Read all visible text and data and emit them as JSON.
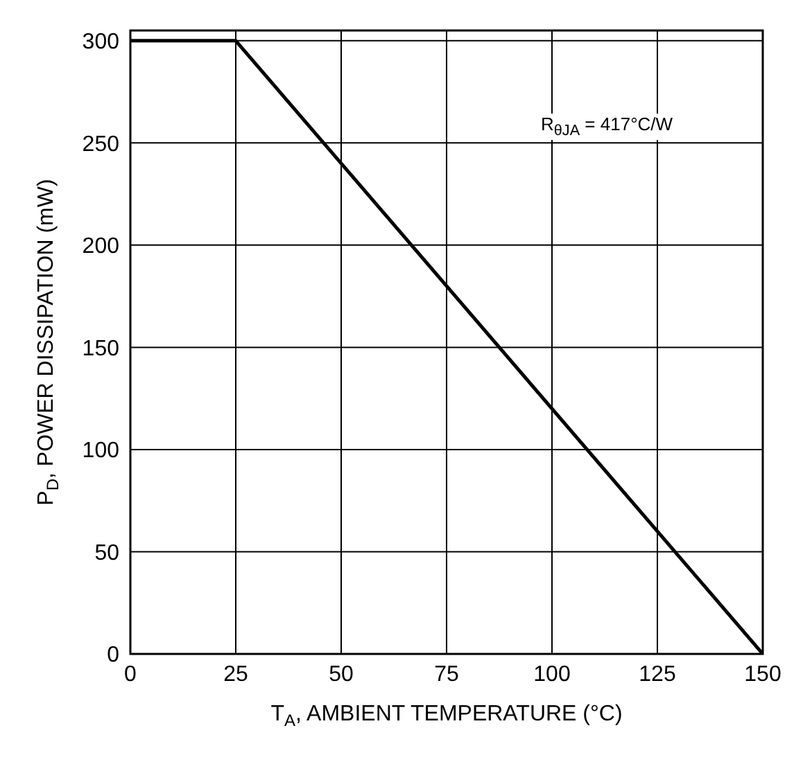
{
  "chart_data": {
    "type": "line",
    "xlabel": "T$_{A}$, AMBIENT TEMPERATURE (°C)",
    "ylabel": "P$_{D}$, POWER DISSIPATION (mW)",
    "x": [
      0,
      25,
      150
    ],
    "series": [
      {
        "color": "#000000",
        "values": [
          300,
          300,
          0
        ]
      }
    ],
    "xlim": [
      0,
      150
    ],
    "xticks": [
      0,
      25,
      50,
      75,
      100,
      125,
      150
    ],
    "ylim": [
      0,
      305
    ],
    "yticks": [
      0,
      50,
      100,
      150,
      200,
      250,
      300
    ],
    "grid": true,
    "marker": "none",
    "line_style": "solid",
    "legend": false,
    "annotations": [
      "R$_{θJA}$ = 417°C/W"
    ]
  }
}
